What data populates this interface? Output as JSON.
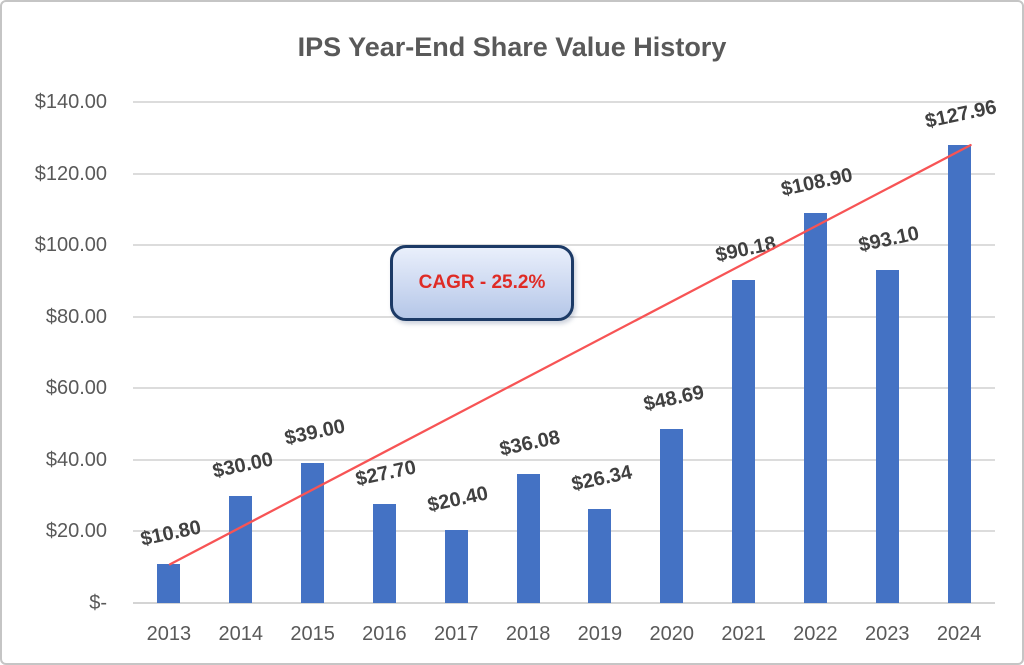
{
  "window": {
    "background": "#ffffff",
    "border_color": "#c5c5c5"
  },
  "chart_data": {
    "type": "bar",
    "title": "IPS Year-End Share Value History",
    "categories": [
      "2013",
      "2014",
      "2015",
      "2016",
      "2017",
      "2018",
      "2019",
      "2020",
      "2021",
      "2022",
      "2023",
      "2024"
    ],
    "values": [
      10.8,
      30.0,
      39.0,
      27.7,
      20.4,
      36.08,
      26.34,
      48.69,
      90.18,
      108.9,
      93.1,
      127.96
    ],
    "data_labels": [
      "$10.80",
      "$30.00",
      "$39.00",
      "$27.70",
      "$20.40",
      "$36.08",
      "$26.34",
      "$48.69",
      "$90.18",
      "$108.90",
      "$93.10",
      "$127.96"
    ],
    "xlabel": "",
    "ylabel": "",
    "ylim": [
      0,
      140
    ],
    "grid": true,
    "legend_position": "none",
    "y_axis_ticks": [
      {
        "value": 140,
        "label": "$140.00"
      },
      {
        "value": 120,
        "label": "$120.00"
      },
      {
        "value": 100,
        "label": "$100.00"
      },
      {
        "value": 80,
        "label": "$80.00"
      },
      {
        "value": 60,
        "label": "$60.00"
      },
      {
        "value": 40,
        "label": "$40.00"
      },
      {
        "value": 20,
        "label": "$20.00"
      },
      {
        "value": 0,
        "label": "$-"
      }
    ],
    "annotation": {
      "text": "CAGR - 25.2%"
    },
    "trendline": {
      "from_category": "2013",
      "to_category": "2024"
    },
    "colors": {
      "bar": "#4472c4",
      "trendline": "#f75455",
      "gridline": "#dcdcdc",
      "baseline": "#d4d4d4",
      "title_text": "#595959",
      "axis_text": "#595959",
      "data_label_text": "#404040",
      "annotation_text": "#df2b25",
      "annotation_border": "#1c3a66",
      "annotation_fill_top": "#e9effb",
      "annotation_fill_mid": "#cdd9f1",
      "annotation_fill_bottom": "#b5c7e8"
    }
  }
}
